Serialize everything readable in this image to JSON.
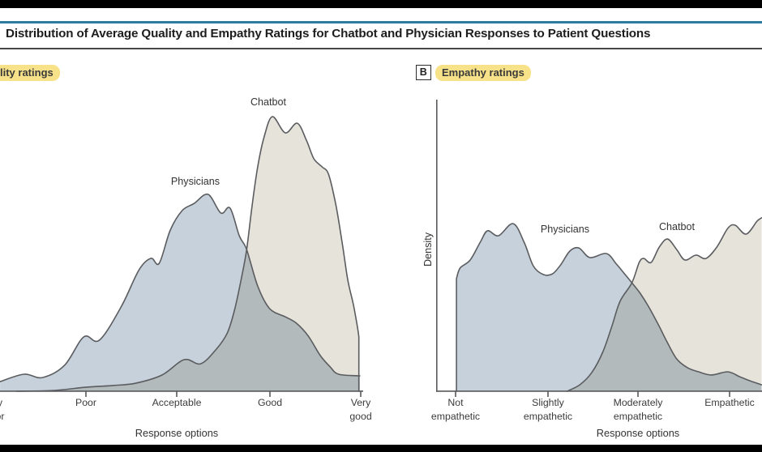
{
  "figure_title": "Distribution of Average Quality and Empathy Ratings for Chatbot and Physician Responses to Patient Questions",
  "panels": {
    "a": {
      "label": "lity ratings",
      "curve_labels": {
        "physicians": "Physicians",
        "chatbot": "Chatbot"
      },
      "x_axis_title": "Response options",
      "ticks": [
        {
          "line1": "y",
          "line2": "or"
        },
        {
          "line1": "Poor",
          "line2": ""
        },
        {
          "line1": "Acceptable",
          "line2": ""
        },
        {
          "line1": "Good",
          "line2": ""
        },
        {
          "line1": "Very",
          "line2": "good"
        }
      ]
    },
    "b": {
      "tag": "B",
      "label": "Empathy ratings",
      "y_axis_title": "Density",
      "curve_labels": {
        "physicians": "Physicians",
        "chatbot": "Chatbot"
      },
      "x_axis_title": "Response options",
      "ticks": [
        {
          "line1": "Not",
          "line2": "empathetic"
        },
        {
          "line1": "Slightly",
          "line2": "empathetic"
        },
        {
          "line1": "Moderately",
          "line2": "empathetic"
        },
        {
          "line1": "Empathetic",
          "line2": ""
        }
      ]
    }
  },
  "colors": {
    "header_rule": "#2e7c9e",
    "title_rule": "#474747",
    "highlight": "#f8e289",
    "physicians_fill": "#c7d1db",
    "chatbot_fill": "#e6e3db",
    "curve_outline": "#5a5c5f",
    "axis": "#58595c"
  },
  "chart_data": [
    {
      "type": "area",
      "panel": "a",
      "title": "lity ratings",
      "xlabel": "Response options",
      "x_categories_visible": [
        "y/or",
        "Poor",
        "Acceptable",
        "Good",
        "Very good"
      ],
      "x_range": [
        1,
        5
      ],
      "y_range": [
        0,
        1
      ],
      "grid": false,
      "series": [
        {
          "name": "Physicians",
          "color": "#c7d1db",
          "edge_start": false,
          "edge_end": false,
          "points": [
            [
              1.08,
              0.035
            ],
            [
              1.34,
              0.062
            ],
            [
              1.54,
              0.05
            ],
            [
              1.78,
              0.094
            ],
            [
              1.99,
              0.198
            ],
            [
              2.16,
              0.186
            ],
            [
              2.4,
              0.31
            ],
            [
              2.59,
              0.442
            ],
            [
              2.72,
              0.484
            ],
            [
              2.81,
              0.466
            ],
            [
              2.93,
              0.587
            ],
            [
              3.06,
              0.658
            ],
            [
              3.19,
              0.684
            ],
            [
              3.34,
              0.717
            ],
            [
              3.48,
              0.649
            ],
            [
              3.58,
              0.667
            ],
            [
              3.68,
              0.566
            ],
            [
              3.76,
              0.516
            ],
            [
              3.88,
              0.383
            ],
            [
              4.01,
              0.301
            ],
            [
              4.18,
              0.271
            ],
            [
              4.3,
              0.248
            ],
            [
              4.43,
              0.201
            ],
            [
              4.56,
              0.13
            ],
            [
              4.67,
              0.088
            ],
            [
              4.76,
              0.062
            ],
            [
              4.99,
              0.056
            ]
          ]
        },
        {
          "name": "Chatbot",
          "color": "#e6e3db",
          "edge_start": false,
          "edge_end": true,
          "points": [
            [
              1.26,
              0.0
            ],
            [
              1.67,
              0.003
            ],
            [
              2.02,
              0.015
            ],
            [
              2.31,
              0.021
            ],
            [
              2.55,
              0.029
            ],
            [
              2.84,
              0.059
            ],
            [
              3.08,
              0.115
            ],
            [
              3.26,
              0.1
            ],
            [
              3.43,
              0.153
            ],
            [
              3.55,
              0.212
            ],
            [
              3.63,
              0.298
            ],
            [
              3.7,
              0.407
            ],
            [
              3.76,
              0.516
            ],
            [
              3.82,
              0.678
            ],
            [
              3.88,
              0.817
            ],
            [
              3.95,
              0.926
            ],
            [
              4.04,
              1.0
            ],
            [
              4.18,
              0.941
            ],
            [
              4.31,
              0.976
            ],
            [
              4.41,
              0.914
            ],
            [
              4.49,
              0.847
            ],
            [
              4.58,
              0.817
            ],
            [
              4.65,
              0.79
            ],
            [
              4.73,
              0.678
            ],
            [
              4.8,
              0.537
            ],
            [
              4.86,
              0.404
            ],
            [
              4.92,
              0.316
            ],
            [
              4.96,
              0.242
            ],
            [
              4.98,
              0.198
            ]
          ]
        }
      ]
    },
    {
      "type": "area",
      "panel": "b",
      "title": "Empathy ratings",
      "xlabel": "Response options",
      "ylabel": "Density",
      "x_categories_visible": [
        "Not empathetic",
        "Slightly empathetic",
        "Moderately empathetic",
        "Empathetic"
      ],
      "x_range": [
        1,
        5
      ],
      "y_range": [
        0,
        1
      ],
      "grid": false,
      "series": [
        {
          "name": "Physicians",
          "color": "#c7d1db",
          "edge_start": true,
          "edge_end": false,
          "points": [
            [
              1.01,
              0.644
            ],
            [
              1.05,
              0.704
            ],
            [
              1.16,
              0.75
            ],
            [
              1.27,
              0.852
            ],
            [
              1.35,
              0.917
            ],
            [
              1.47,
              0.889
            ],
            [
              1.63,
              0.958
            ],
            [
              1.75,
              0.852
            ],
            [
              1.85,
              0.717
            ],
            [
              1.96,
              0.667
            ],
            [
              2.06,
              0.671
            ],
            [
              2.15,
              0.722
            ],
            [
              2.25,
              0.801
            ],
            [
              2.35,
              0.819
            ],
            [
              2.47,
              0.764
            ],
            [
              2.65,
              0.787
            ],
            [
              2.76,
              0.727
            ],
            [
              2.85,
              0.671
            ],
            [
              2.93,
              0.62
            ],
            [
              3.02,
              0.56
            ],
            [
              3.11,
              0.486
            ],
            [
              3.22,
              0.38
            ],
            [
              3.31,
              0.287
            ],
            [
              3.42,
              0.185
            ],
            [
              3.54,
              0.134
            ],
            [
              3.66,
              0.111
            ],
            [
              3.8,
              0.093
            ],
            [
              3.98,
              0.111
            ],
            [
              4.11,
              0.083
            ],
            [
              4.22,
              0.06
            ],
            [
              4.35,
              0.037
            ]
          ]
        },
        {
          "name": "Chatbot",
          "color": "#e6e3db",
          "edge_start": false,
          "edge_end": false,
          "points": [
            [
              2.22,
              0.0
            ],
            [
              2.36,
              0.037
            ],
            [
              2.49,
              0.106
            ],
            [
              2.61,
              0.222
            ],
            [
              2.71,
              0.37
            ],
            [
              2.8,
              0.514
            ],
            [
              2.93,
              0.62
            ],
            [
              3.01,
              0.736
            ],
            [
              3.06,
              0.759
            ],
            [
              3.14,
              0.736
            ],
            [
              3.23,
              0.824
            ],
            [
              3.32,
              0.87
            ],
            [
              3.42,
              0.81
            ],
            [
              3.51,
              0.75
            ],
            [
              3.63,
              0.778
            ],
            [
              3.74,
              0.759
            ],
            [
              3.86,
              0.824
            ],
            [
              3.98,
              0.931
            ],
            [
              4.06,
              0.949
            ],
            [
              4.18,
              0.898
            ],
            [
              4.3,
              0.972
            ],
            [
              4.35,
              0.991
            ]
          ]
        }
      ]
    }
  ]
}
